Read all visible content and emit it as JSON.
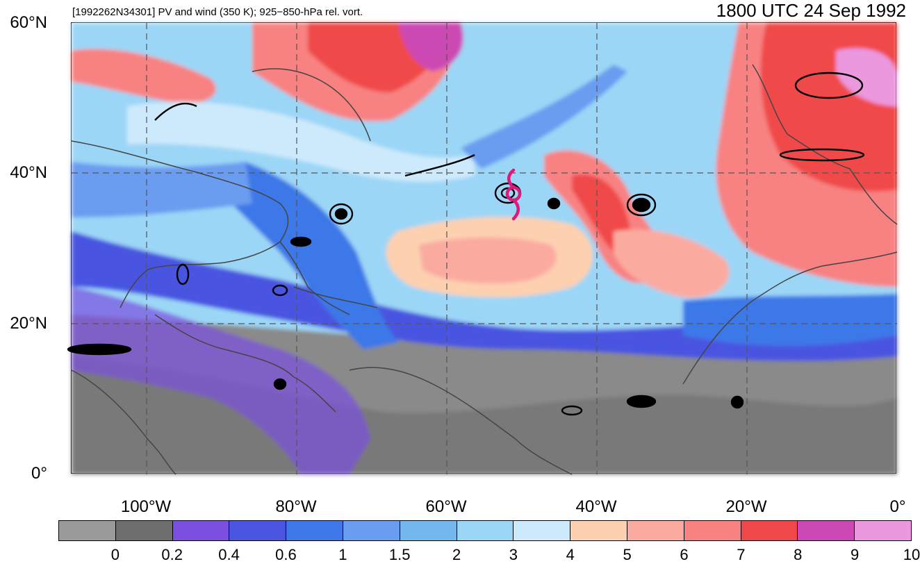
{
  "header": {
    "caption": "[1992262N34301] PV and wind (350 K); 925−850-hPa rel. vort.",
    "valid_time": "1800 UTC 24 Sep 1992"
  },
  "axes": {
    "lat_labels": [
      "60°N",
      "40°N",
      "20°N",
      "0°"
    ],
    "lon_labels": [
      "100°W",
      "80°W",
      "60°W",
      "40°W",
      "20°W",
      "0°"
    ]
  },
  "map": {
    "extent_lon": [
      -110,
      0
    ],
    "extent_lat": [
      0,
      60
    ],
    "storm_marker": {
      "symbol": "tropical-cyclone-icon",
      "lon": -52,
      "lat": 37,
      "color": "#e0187a"
    }
  },
  "colorbar": {
    "labels": [
      "0",
      "0.2",
      "0.4",
      "0.6",
      "1",
      "1.5",
      "2",
      "3",
      "4",
      "5",
      "6",
      "7",
      "8",
      "9",
      "10"
    ],
    "colors": [
      "#9a9a9a",
      "#6e6e6e",
      "#7b4fe0",
      "#4a55e0",
      "#3e78e8",
      "#6a9cf0",
      "#72b8ec",
      "#9cd6f6",
      "#cdeafc",
      "#fdd0b0",
      "#fbaaa0",
      "#f88282",
      "#f04848",
      "#cc48b4",
      "#ec98de"
    ]
  }
}
